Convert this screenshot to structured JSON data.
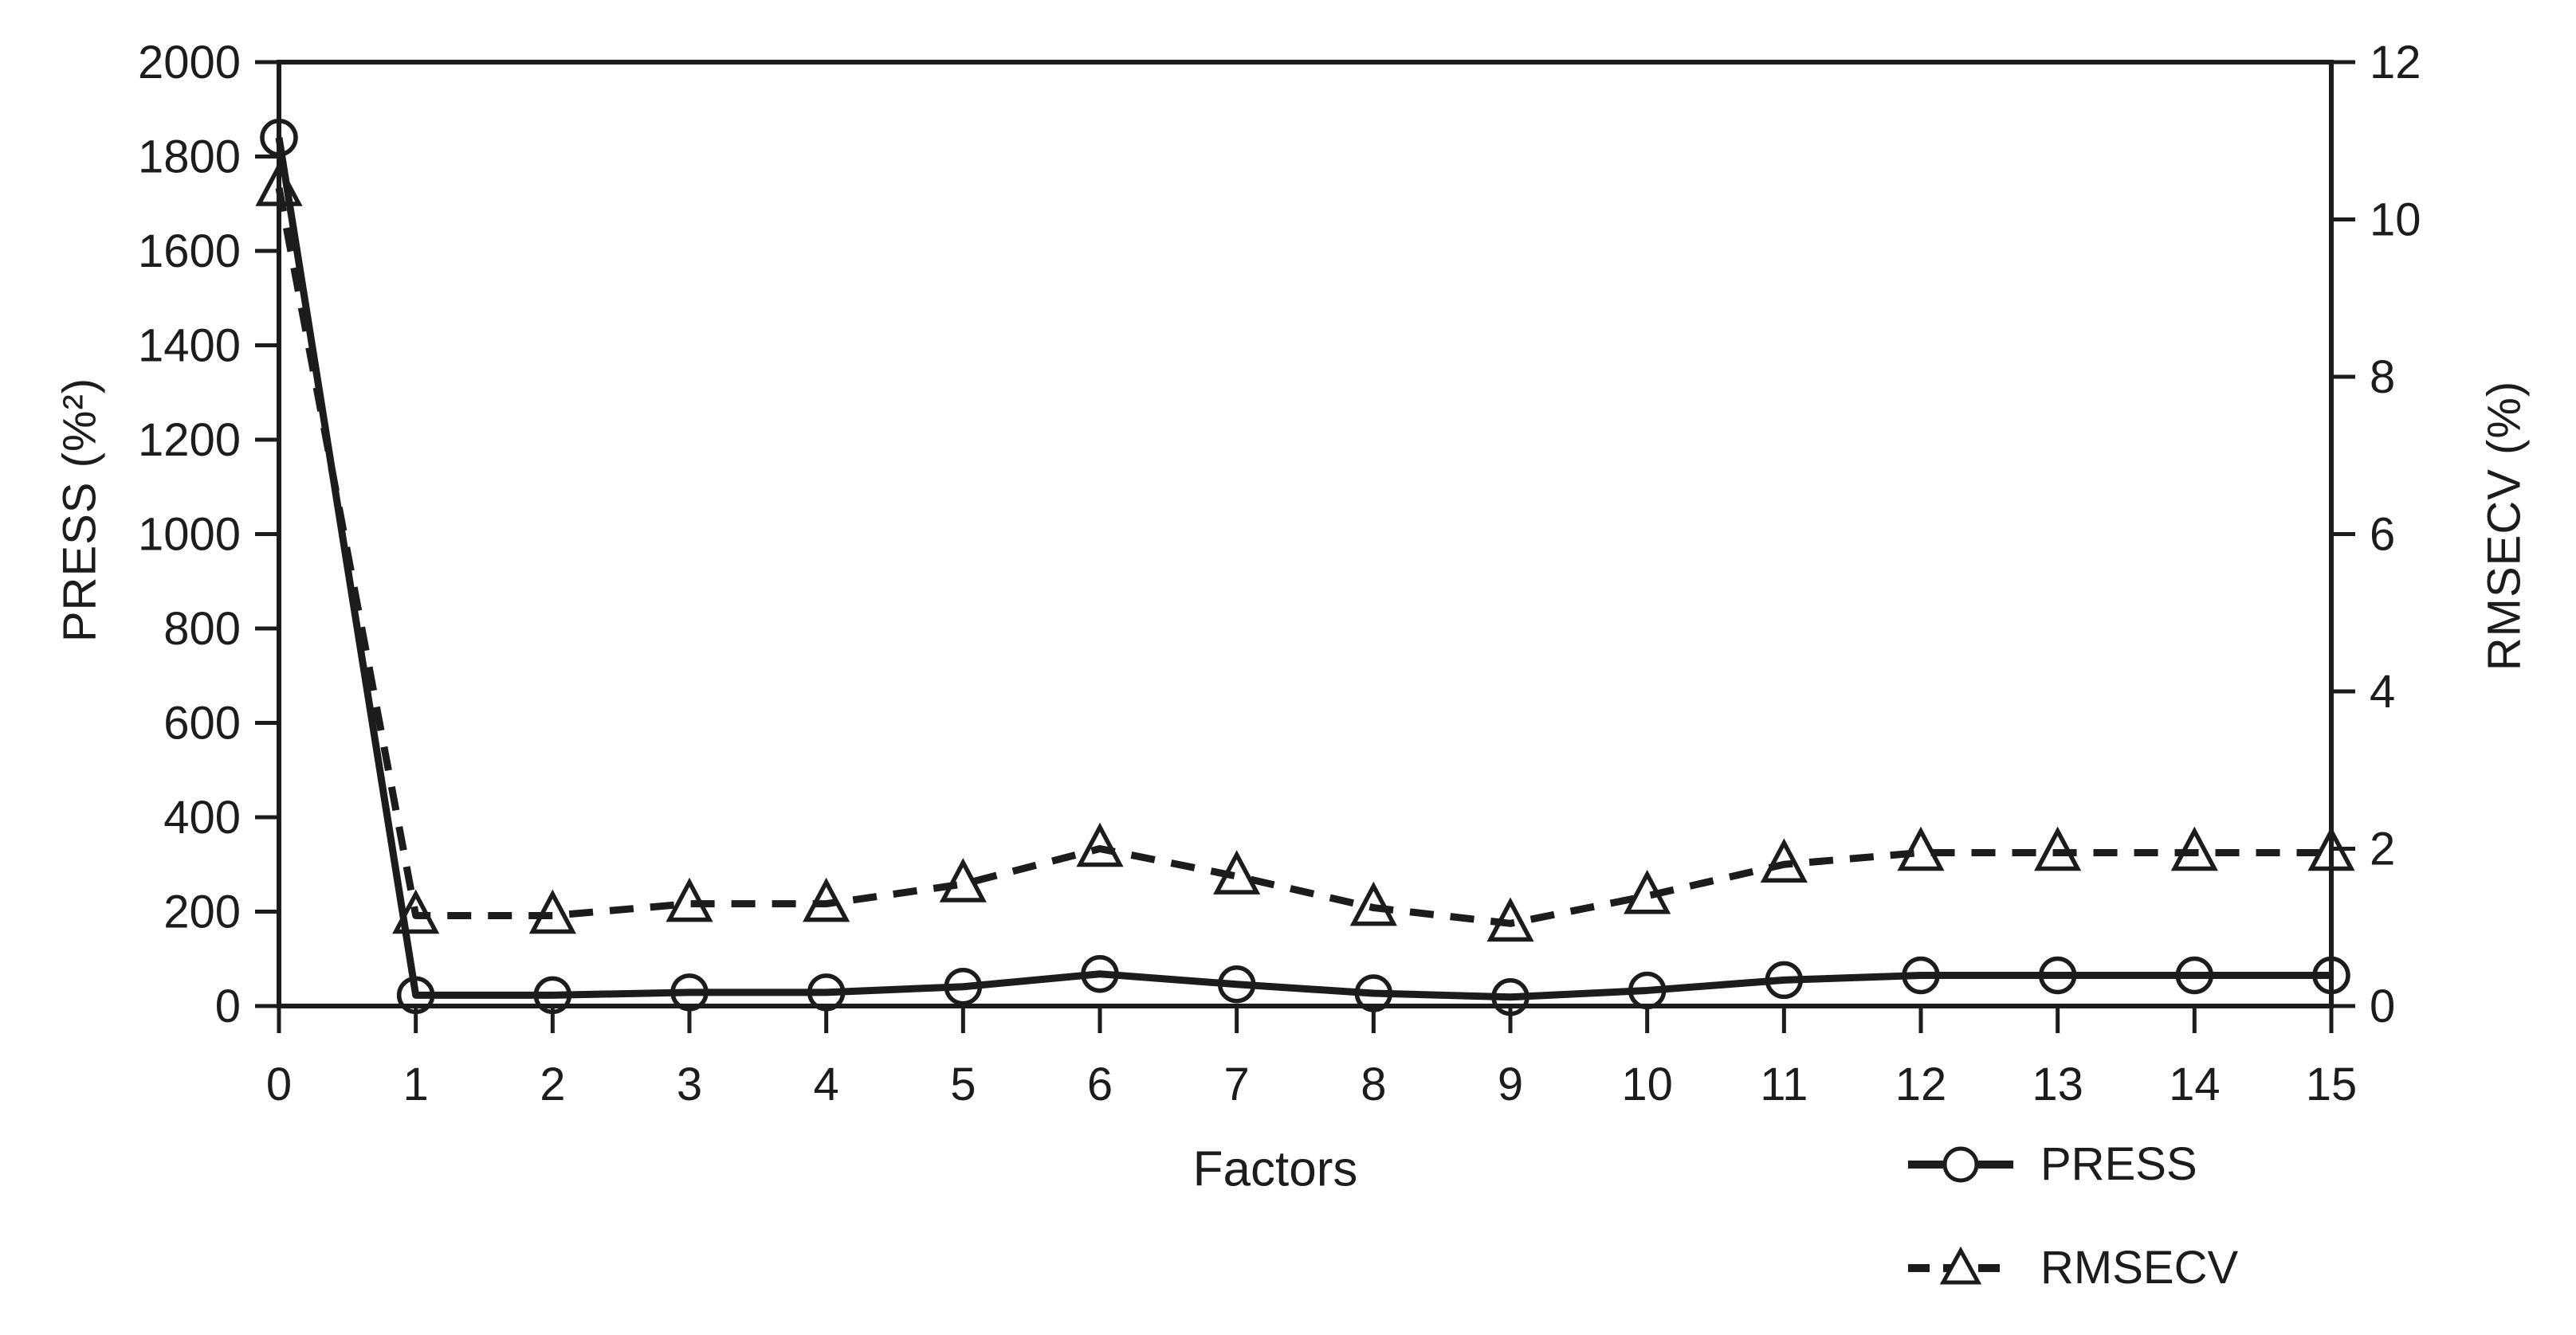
{
  "chart_data": {
    "type": "line",
    "xlabel": "Factors",
    "ylabel_left": "PRESS (%²)",
    "ylabel_right": "RMSECV (%)",
    "x": [
      0,
      1,
      2,
      3,
      4,
      5,
      6,
      7,
      8,
      9,
      10,
      11,
      12,
      13,
      14,
      15
    ],
    "xlim": [
      0,
      15
    ],
    "xticks": [
      0,
      1,
      2,
      3,
      4,
      5,
      6,
      7,
      8,
      9,
      10,
      11,
      12,
      13,
      14,
      15
    ],
    "ylim_left": [
      0,
      2000
    ],
    "yticks_left": [
      0,
      200,
      400,
      600,
      800,
      1000,
      1200,
      1400,
      1600,
      1800,
      2000
    ],
    "ylim_right": [
      0,
      12
    ],
    "yticks_right": [
      0,
      2,
      4,
      6,
      8,
      10,
      12
    ],
    "grid": false,
    "legend_position": "bottom-right",
    "series": [
      {
        "name": "PRESS",
        "axis": "left",
        "line_style": "solid",
        "marker": "circle",
        "values": [
          1840,
          23,
          23,
          29,
          29,
          41,
          68,
          46,
          27,
          19,
          33,
          55,
          65,
          65,
          65,
          65
        ]
      },
      {
        "name": "RMSECV",
        "axis": "right",
        "line_style": "dashed",
        "marker": "triangle",
        "values": [
          10.4,
          1.15,
          1.15,
          1.3,
          1.3,
          1.55,
          2.0,
          1.65,
          1.25,
          1.05,
          1.4,
          1.8,
          1.95,
          1.95,
          1.95,
          1.95
        ]
      }
    ],
    "line_color": "#1c1c1c",
    "background_color": "#ffffff"
  },
  "legend": {
    "items": [
      {
        "label": "PRESS"
      },
      {
        "label": "RMSECV"
      }
    ]
  }
}
